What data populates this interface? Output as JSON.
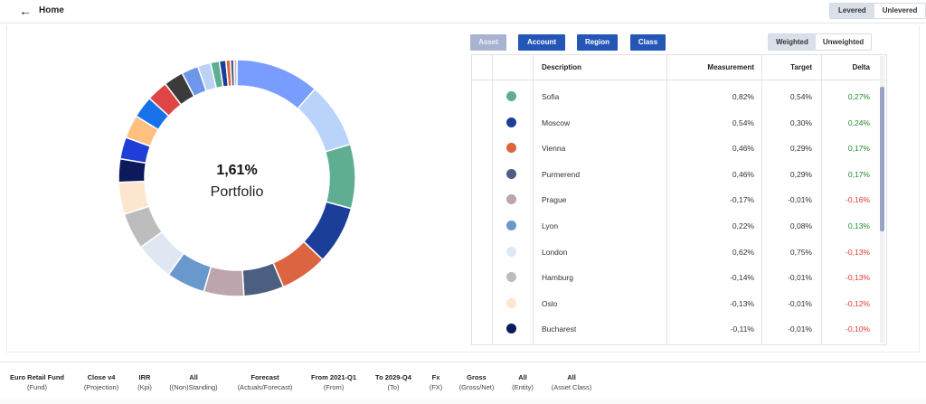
{
  "header": {
    "title": "Home",
    "lever_options": [
      {
        "label": "Levered",
        "active": true
      },
      {
        "label": "Unlevered",
        "active": false
      }
    ]
  },
  "donut": {
    "value": "1,61%",
    "label": "Portfolio"
  },
  "group_by": {
    "buttons": [
      {
        "label": "Asset",
        "enabled": false
      },
      {
        "label": "Account",
        "enabled": true
      },
      {
        "label": "Region",
        "enabled": true
      },
      {
        "label": "Class",
        "enabled": true
      }
    ]
  },
  "weight_options": [
    {
      "label": "Weighted",
      "active": true
    },
    {
      "label": "Unweighted",
      "active": false
    }
  ],
  "table": {
    "columns": {
      "description": "Description",
      "measurement": "Measurement",
      "target": "Target",
      "delta": "Delta"
    },
    "rows": [
      {
        "color": "#5fae92",
        "description": "Sofia",
        "measurement": "0,82%",
        "target": "0,54%",
        "delta": "0,27%",
        "sign": "pos"
      },
      {
        "color": "#1b3f99",
        "description": "Moscow",
        "measurement": "0,54%",
        "target": "0,30%",
        "delta": "0,24%",
        "sign": "pos"
      },
      {
        "color": "#dd6440",
        "description": "Vienna",
        "measurement": "0,46%",
        "target": "0,29%",
        "delta": "0,17%",
        "sign": "pos"
      },
      {
        "color": "#4c5f80",
        "description": "Purmerend",
        "measurement": "0,46%",
        "target": "0,29%",
        "delta": "0,17%",
        "sign": "pos"
      },
      {
        "color": "#bda5ad",
        "description": "Prague",
        "measurement": "-0,17%",
        "target": "-0,01%",
        "delta": "-0,16%",
        "sign": "neg"
      },
      {
        "color": "#6898cc",
        "description": "Lyon",
        "measurement": "0,22%",
        "target": "0,08%",
        "delta": "0,13%",
        "sign": "pos"
      },
      {
        "color": "#dfe8f2",
        "description": "London",
        "measurement": "0,62%",
        "target": "0,75%",
        "delta": "-0,13%",
        "sign": "neg"
      },
      {
        "color": "#bdbdbd",
        "description": "Hamburg",
        "measurement": "-0,14%",
        "target": "-0,01%",
        "delta": "-0,13%",
        "sign": "neg"
      },
      {
        "color": "#fde6cf",
        "description": "Oslo",
        "measurement": "-0,13%",
        "target": "-0,01%",
        "delta": "-0,12%",
        "sign": "neg"
      },
      {
        "color": "#0c1a5c",
        "description": "Bucharest",
        "measurement": "-0,11%",
        "target": "-0,01%",
        "delta": "-0,10%",
        "sign": "neg"
      }
    ]
  },
  "chart_data": {
    "type": "pie",
    "title": "",
    "note": "Donut chart; visible slice shares estimated from the image, in order clockwise from the top.",
    "slices": [
      {
        "color": "#799cff",
        "value": 11.5
      },
      {
        "color": "#b9d3fb",
        "value": 9.0
      },
      {
        "color": "#5fae92",
        "value": 8.8
      },
      {
        "color": "#1b3f99",
        "value": 8.0
      },
      {
        "color": "#dd6440",
        "value": 6.5
      },
      {
        "color": "#4c5f80",
        "value": 5.5
      },
      {
        "color": "#bda5ad",
        "value": 5.5
      },
      {
        "color": "#6898cc",
        "value": 5.3
      },
      {
        "color": "#dfe8f2",
        "value": 5.3
      },
      {
        "color": "#bdbdbd",
        "value": 5.0
      },
      {
        "color": "#fde6cf",
        "value": 4.4
      },
      {
        "color": "#0c1a5c",
        "value": 3.2
      },
      {
        "color": "#1f3ed8",
        "value": 3.0
      },
      {
        "color": "#ffbf7f",
        "value": 3.2
      },
      {
        "color": "#1772ea",
        "value": 3.0
      },
      {
        "color": "#e04545",
        "value": 2.9
      },
      {
        "color": "#3b3b3b",
        "value": 2.7
      },
      {
        "color": "#6d97ea",
        "value": 2.3
      },
      {
        "color": "#bcd2f4",
        "value": 1.8
      },
      {
        "color": "#5fae92",
        "value": 1.2
      },
      {
        "color": "#1b3f99",
        "value": 0.9
      },
      {
        "color": "#dd6440",
        "value": 0.6
      },
      {
        "color": "#4c5f80",
        "value": 0.5
      },
      {
        "color": "#bdbdbd",
        "value": 0.4
      }
    ]
  },
  "footer": {
    "items": [
      {
        "label": "Euro Retail Fund",
        "sub": "(Fund)"
      },
      {
        "label": "Close v4",
        "sub": "(Projection)"
      },
      {
        "label": "IRR",
        "sub": "(Kpi)"
      },
      {
        "label": "All",
        "sub": "((Non)Standing)"
      },
      {
        "label": "Forecast",
        "sub": "(Actuals/Forecast)"
      },
      {
        "label": "From 2021-Q1",
        "sub": "(From)"
      },
      {
        "label": "To 2029-Q4",
        "sub": "(To)"
      },
      {
        "label": "Fx",
        "sub": "(FX)"
      },
      {
        "label": "Gross",
        "sub": "(Gross/Net)"
      },
      {
        "label": "All",
        "sub": "(Entity)"
      },
      {
        "label": "All",
        "sub": "(Asset Class)"
      }
    ]
  }
}
